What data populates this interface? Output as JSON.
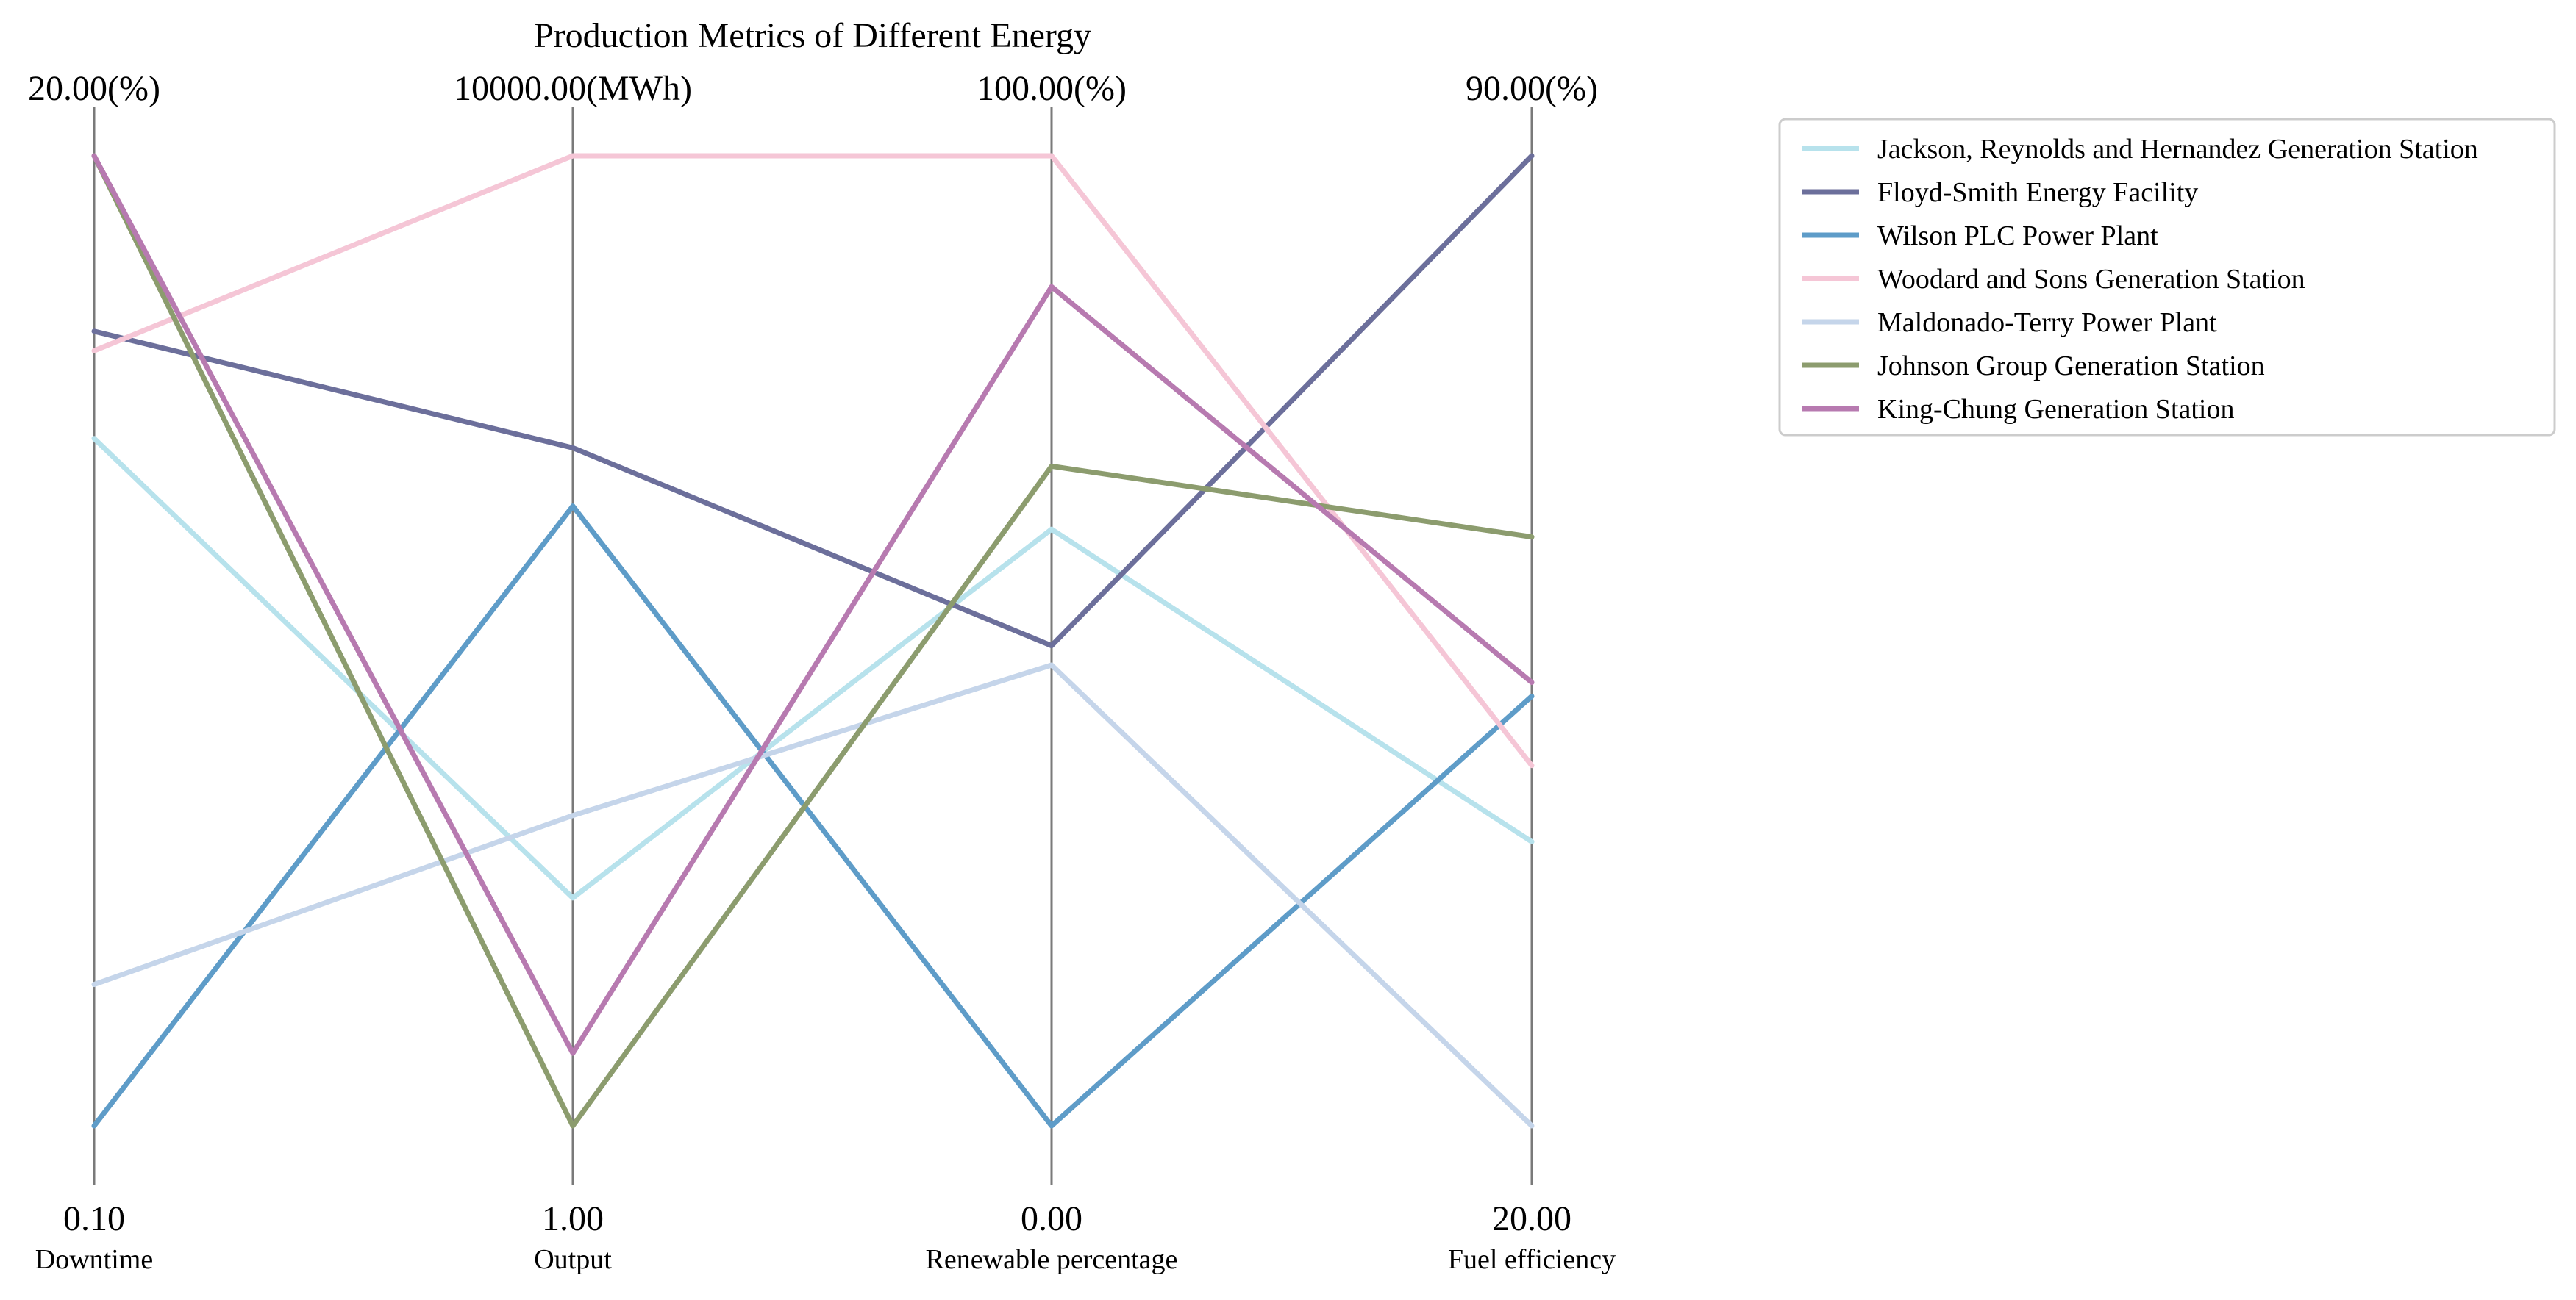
{
  "chart_data": {
    "type": "parallel_coordinates",
    "title": "Production Metrics of Different Energy",
    "axes": [
      {
        "name": "Downtime",
        "min_label": "0.10",
        "max_label": "20.00(%)",
        "min": 0.1,
        "max": 20.0
      },
      {
        "name": "Output",
        "min_label": "1.00",
        "max_label": "10000.00(MWh)",
        "min": 1.0,
        "max": 10000.0
      },
      {
        "name": "Renewable percentage",
        "min_label": "0.00",
        "max_label": "100.00(%)",
        "min": 0.0,
        "max": 100.0
      },
      {
        "name": "Fuel efficiency",
        "min_label": "20.00",
        "max_label": "90.00(%)",
        "min": 20.0,
        "max": 90.0
      }
    ],
    "series": [
      {
        "name": "Jackson, Reynolds and Hernandez  Generation Station",
        "color": "#b7e2ec",
        "values": [
          14.2,
          2350,
          61.5,
          40.5
        ]
      },
      {
        "name": "Floyd-Smith  Energy Facility",
        "color": "#6c6f9b",
        "values": [
          16.4,
          6990,
          49.5,
          90.0
        ]
      },
      {
        "name": "Wilson PLC  Power Plant",
        "color": "#5e9cc8",
        "values": [
          0.1,
          6390,
          0.0,
          51.0
        ]
      },
      {
        "name": "Woodard and Sons  Generation Station",
        "color": "#f5c6d6",
        "values": [
          16.0,
          10000,
          100.0,
          46.0
        ]
      },
      {
        "name": "Maldonado-Terry  Power Plant",
        "color": "#c5d5ea",
        "values": [
          3.0,
          3200,
          47.5,
          20.0
        ]
      },
      {
        "name": "Johnson Group  Generation Station",
        "color": "#8c9c6e",
        "values": [
          20.0,
          1.0,
          68.0,
          62.5
        ]
      },
      {
        "name": "King-Chung  Generation Station",
        "color": "#b77ab0",
        "values": [
          20.0,
          750,
          86.5,
          52.0
        ]
      }
    ],
    "legend_position": "top-right",
    "grid": false
  }
}
